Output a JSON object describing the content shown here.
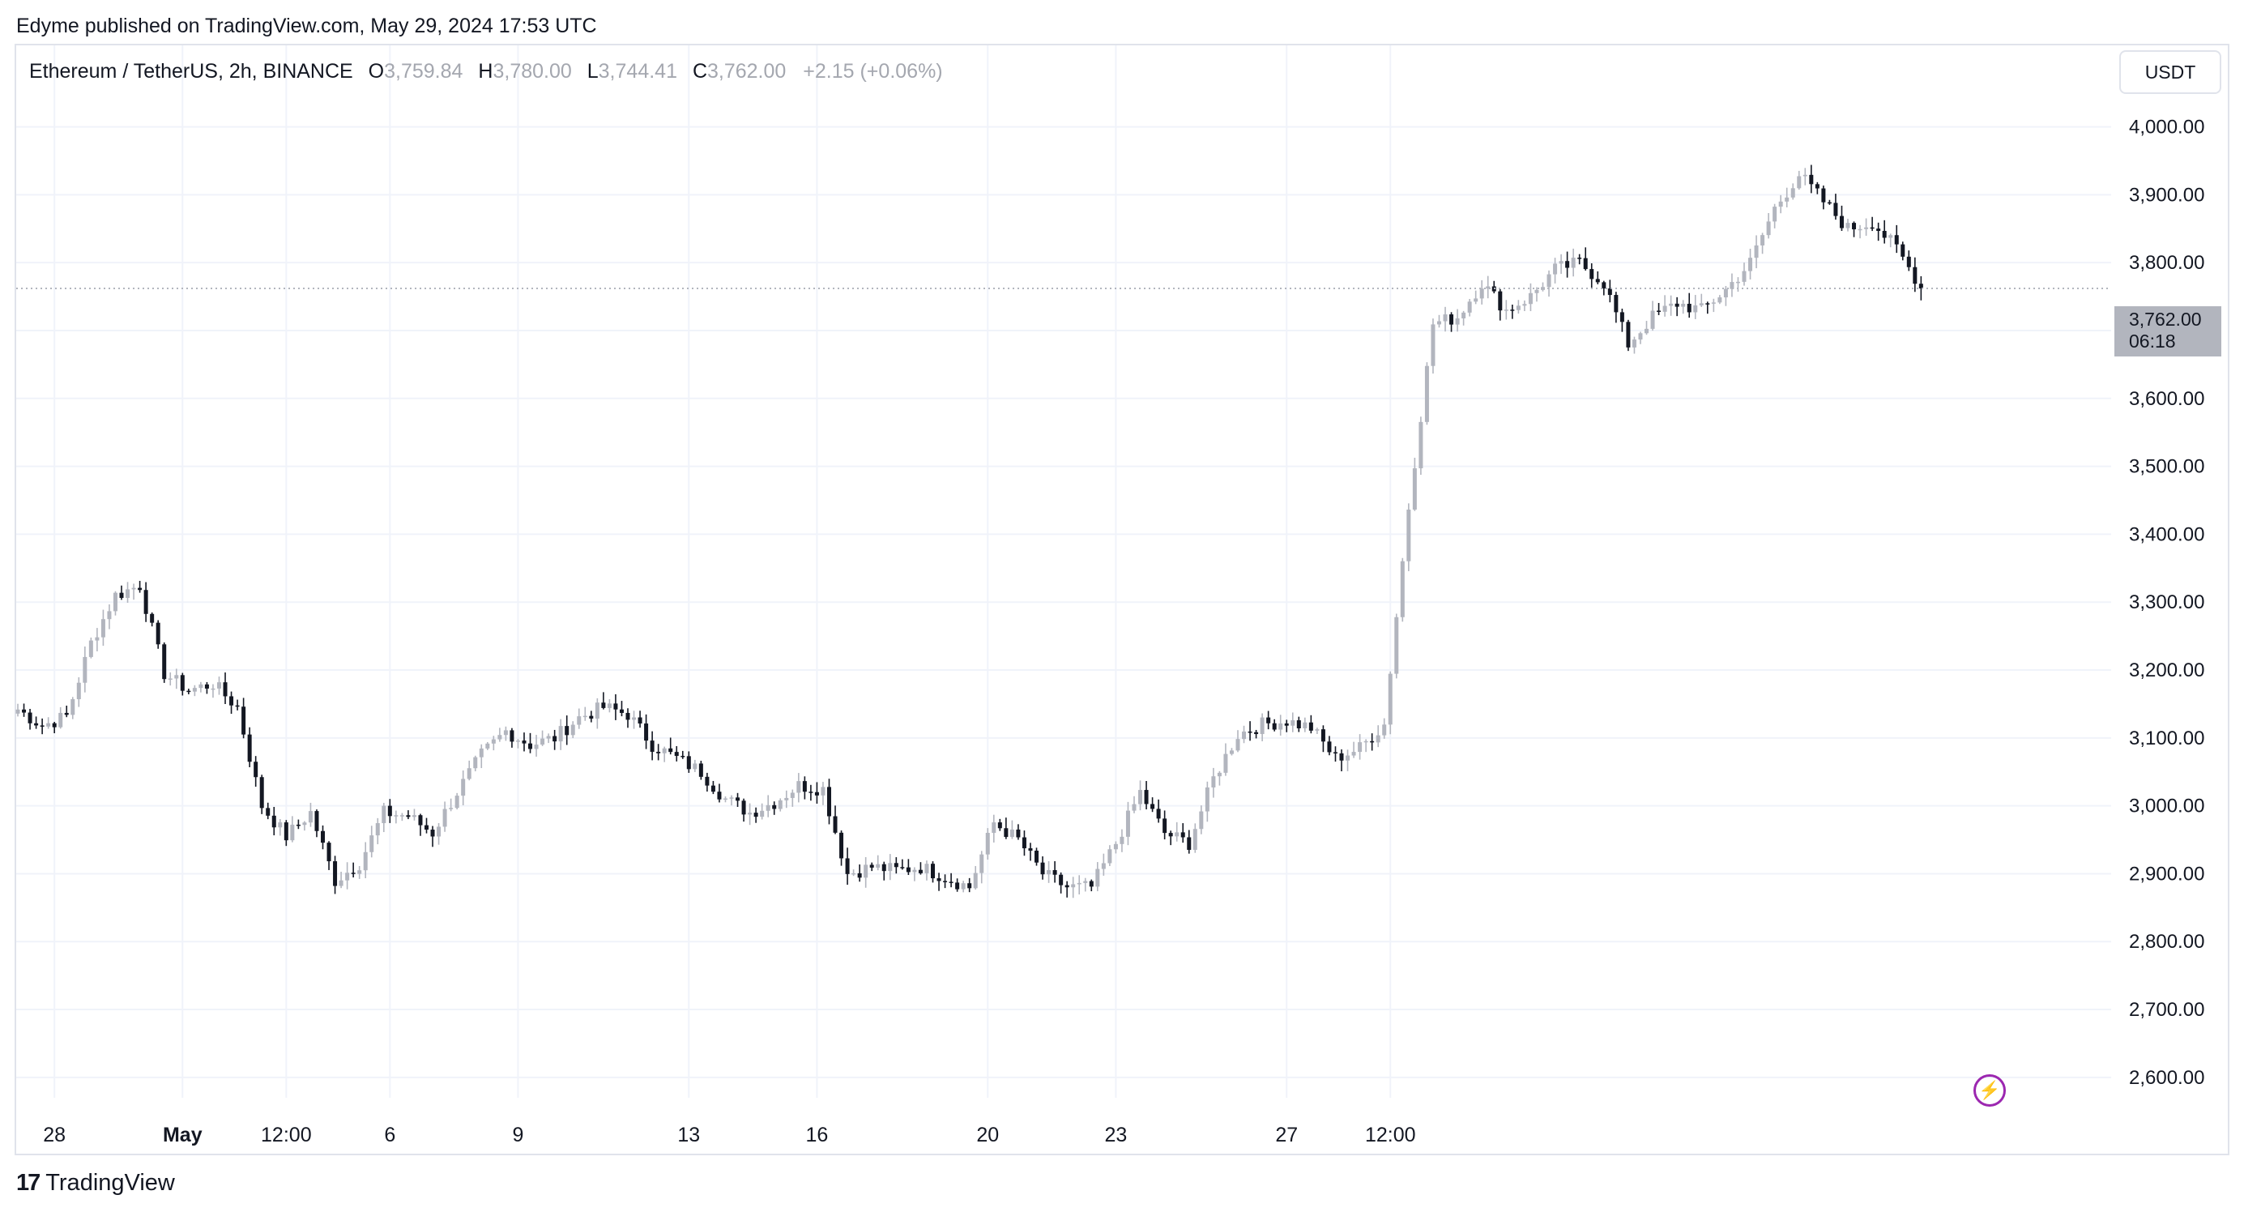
{
  "publisher_line": "Edyme published on TradingView.com, May 29, 2024 17:53 UTC",
  "legend": {
    "symbol": "Ethereum / TetherUS, 2h, BINANCE",
    "open_label": "O",
    "open": "3,759.84",
    "high_label": "H",
    "high": "3,780.00",
    "low_label": "L",
    "low": "3,744.41",
    "close_label": "C",
    "close": "3,762.00",
    "change": "+2.15 (+0.06%)"
  },
  "unit_button": "USDT",
  "last_price": {
    "value": "3,762.00",
    "countdown": "06:18"
  },
  "footer_logo": {
    "mark": "17",
    "text": "TradingView"
  },
  "colors": {
    "up": "#b2b5be",
    "down": "#131722",
    "grid": "#f0f3fa",
    "tag": "#b2b5be",
    "alert": "#9c27b0"
  },
  "icons": {
    "alert": "lightning-bolt-icon",
    "logo": "tradingview-logo-icon"
  },
  "chart_data": {
    "type": "candlestick",
    "y_axis": {
      "min": 2570,
      "max": 4120,
      "ticks": [
        "2,600.00",
        "2,700.00",
        "2,800.00",
        "2,900.00",
        "3,000.00",
        "3,100.00",
        "3,200.00",
        "3,300.00",
        "3,400.00",
        "3,500.00",
        "3,600.00",
        "3,700.00",
        "3,800.00",
        "3,900.00",
        "4,000.00"
      ],
      "tick_values": [
        2600,
        2700,
        2800,
        2900,
        3000,
        3100,
        3200,
        3300,
        3400,
        3500,
        3600,
        3700,
        3800,
        3900,
        4000
      ]
    },
    "x_axis": {
      "labels": [
        "28",
        "May",
        "12:00",
        "6",
        "9",
        "13",
        "16",
        "20",
        "23",
        "27",
        "12:00"
      ],
      "label_bar_index": [
        6,
        27,
        44,
        61,
        82,
        110,
        131,
        159,
        180,
        208,
        225
      ]
    },
    "grid": true,
    "last_price_line": 3762,
    "close_path": [
      [
        0,
        3142
      ],
      [
        4,
        3118
      ],
      [
        8,
        3132
      ],
      [
        12,
        3240
      ],
      [
        16,
        3310
      ],
      [
        20,
        3325
      ],
      [
        24,
        3195
      ],
      [
        28,
        3170
      ],
      [
        32,
        3180
      ],
      [
        36,
        3145
      ],
      [
        40,
        3000
      ],
      [
        44,
        2955
      ],
      [
        48,
        2990
      ],
      [
        52,
        2890
      ],
      [
        56,
        2915
      ],
      [
        60,
        2990
      ],
      [
        64,
        2985
      ],
      [
        68,
        2960
      ],
      [
        72,
        3020
      ],
      [
        76,
        3075
      ],
      [
        80,
        3110
      ],
      [
        84,
        3090
      ],
      [
        88,
        3100
      ],
      [
        92,
        3130
      ],
      [
        96,
        3145
      ],
      [
        100,
        3135
      ],
      [
        104,
        3090
      ],
      [
        108,
        3070
      ],
      [
        112,
        3050
      ],
      [
        116,
        3010
      ],
      [
        120,
        2990
      ],
      [
        124,
        3005
      ],
      [
        128,
        3030
      ],
      [
        132,
        3025
      ],
      [
        136,
        2900
      ],
      [
        140,
        2910
      ],
      [
        144,
        2905
      ],
      [
        148,
        2910
      ],
      [
        152,
        2895
      ],
      [
        156,
        2880
      ],
      [
        160,
        2975
      ],
      [
        164,
        2950
      ],
      [
        168,
        2900
      ],
      [
        172,
        2880
      ],
      [
        176,
        2880
      ],
      [
        180,
        2945
      ],
      [
        184,
        3020
      ],
      [
        188,
        2960
      ],
      [
        192,
        2945
      ],
      [
        196,
        3040
      ],
      [
        200,
        3105
      ],
      [
        204,
        3120
      ],
      [
        208,
        3125
      ],
      [
        212,
        3115
      ],
      [
        216,
        3070
      ],
      [
        220,
        3085
      ],
      [
        224,
        3120
      ],
      [
        228,
        3440
      ],
      [
        232,
        3710
      ],
      [
        236,
        3720
      ],
      [
        240,
        3770
      ],
      [
        244,
        3730
      ],
      [
        248,
        3750
      ],
      [
        252,
        3790
      ],
      [
        256,
        3800
      ],
      [
        260,
        3770
      ],
      [
        264,
        3680
      ],
      [
        268,
        3720
      ],
      [
        272,
        3740
      ],
      [
        276,
        3730
      ],
      [
        280,
        3760
      ],
      [
        284,
        3800
      ],
      [
        288,
        3880
      ],
      [
        292,
        3930
      ],
      [
        296,
        3890
      ],
      [
        300,
        3850
      ],
      [
        304,
        3860
      ],
      [
        308,
        3820
      ],
      [
        312,
        3765
      ]
    ],
    "total_bars": 313
  }
}
